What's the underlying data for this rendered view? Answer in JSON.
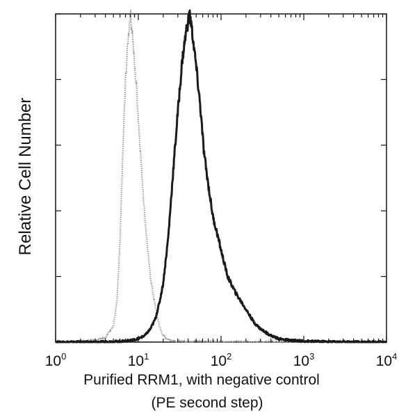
{
  "chart_data": {
    "type": "line",
    "ylabel": "Relative Cell Number",
    "xlabel_lines": [
      "Purified RRM1, with negative control",
      "(PE second step)"
    ],
    "x_scale": "log",
    "xlim": [
      1,
      10000
    ],
    "ylim": [
      0,
      100
    ],
    "x_ticks": [
      {
        "value": 1,
        "base": "10",
        "exp": "0"
      },
      {
        "value": 10,
        "base": "10",
        "exp": "1"
      },
      {
        "value": 100,
        "base": "10",
        "exp": "2"
      },
      {
        "value": 1000,
        "base": "10",
        "exp": "3"
      },
      {
        "value": 10000,
        "base": "10",
        "exp": "4"
      }
    ],
    "y_ticks": [
      0,
      20,
      40,
      60,
      80,
      100
    ],
    "grid": false,
    "series": [
      {
        "color": "#9a9a9a",
        "style": "dotted",
        "x": [
          1,
          2,
          3,
          4,
          5,
          5.5,
          6,
          6.5,
          7,
          7.5,
          8,
          8.5,
          9,
          9.5,
          10,
          11,
          12,
          13,
          14,
          15,
          16,
          17,
          18,
          19,
          20,
          22,
          25,
          30,
          40,
          60,
          100,
          300,
          1000,
          10000
        ],
        "y": [
          0,
          0.2,
          0.6,
          1.5,
          5,
          12,
          30,
          58,
          80,
          92,
          100,
          94,
          84,
          78,
          68,
          52,
          38,
          28,
          20,
          15,
          11,
          8,
          5,
          3,
          2,
          1,
          0.5,
          0.3,
          0.2,
          0.2,
          0.1,
          0.1,
          0.1,
          0
        ]
      },
      {
        "color": "#1a1a1a",
        "style": "solid",
        "x": [
          1,
          3,
          6,
          8,
          10,
          12,
          14,
          16,
          18,
          20,
          23,
          26,
          30,
          34,
          38,
          42,
          46,
          50,
          56,
          62,
          70,
          80,
          90,
          100,
          120,
          150,
          200,
          250,
          300,
          400,
          500,
          700,
          1000,
          2000,
          10000
        ],
        "y": [
          0,
          0,
          0.2,
          0.5,
          1,
          2,
          4,
          7,
          12,
          18,
          32,
          50,
          70,
          86,
          95,
          100,
          92,
          84,
          72,
          58,
          48,
          38,
          33,
          28,
          20,
          15,
          10,
          6,
          4,
          2,
          1,
          0.5,
          0.3,
          0.1,
          0
        ]
      }
    ]
  }
}
